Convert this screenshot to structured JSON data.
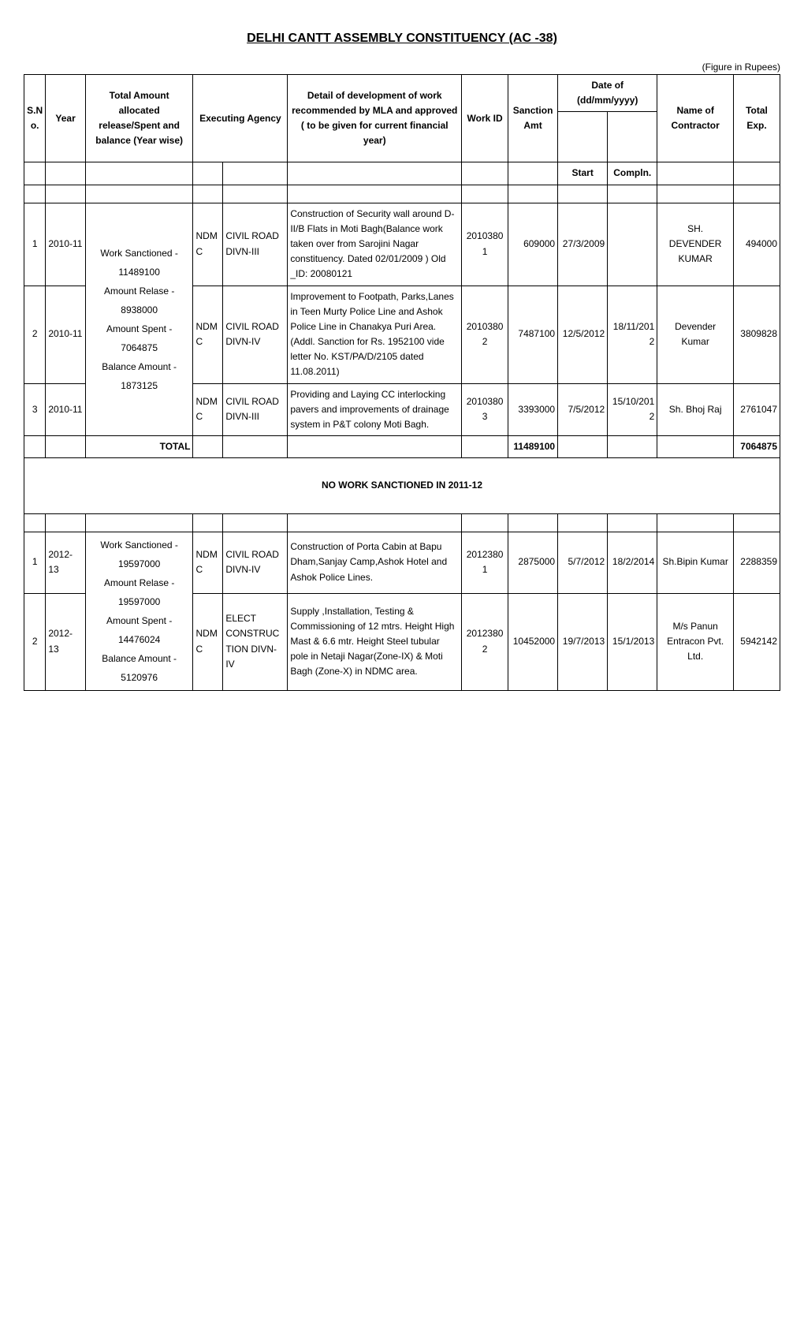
{
  "title": "DELHI CANTT ASSEMBLY CONSTITUENCY (AC -38)",
  "figure_note": "(Figure in Rupees)",
  "headers": {
    "sno": "S.No.",
    "year": "Year",
    "amount": "Total Amount allocated release/Spent and balance (Year wise)",
    "agency": "Executing  Agency",
    "detail": "Detail of development of work recommended by  MLA  and approved ( to be given for current financial year)",
    "workid": "Work ID",
    "sanction": "Sanction Amt",
    "date": "Date of (dd/mm/yyyy)",
    "contractor": "Name of Contractor",
    "total": "Total Exp.",
    "start": "Start",
    "compln": "Compln."
  },
  "section1": {
    "amount_text": "Work Sanctioned - 11489100 Amount Relase - 8938000 Amount Spent - 7064875 Balance Amount - 1873125",
    "amount_part1": "Work Sanctioned - 11489100",
    "amount_part2": "Amount Relase - 8938000",
    "amount_part3": "Amount Spent -",
    "amount_part4": "7064875",
    "amount_part5": "Balance Amount - 1873125",
    "rows": [
      {
        "sno": "1",
        "year": "2010-11",
        "agency1": "NDMC",
        "agency2": "CIVIL ROAD DIVN-III",
        "detail": "Construction of Security wall around D-II/B Flats in Moti Bagh(Balance work taken over from Sarojini Nagar constituency. Dated 02/01/2009 ) Old _ID: 20080121",
        "workid": "20103801",
        "sanction": "609000",
        "start": "27/3/2009",
        "compln": "",
        "contractor": "SH. DEVENDER KUMAR",
        "total": "494000"
      },
      {
        "sno": "2",
        "year": "2010-11",
        "agency1": "NDMC",
        "agency2": "CIVIL ROAD DIVN-IV",
        "detail": "Improvement to Footpath, Parks,Lanes in Teen Murty Police Line and Ashok Police Line in Chanakya Puri Area.(Addl. Sanction for Rs. 1952100 vide letter No. KST/PA/D/2105 dated 11.08.2011)",
        "workid": "20103802",
        "sanction": "7487100",
        "start": "12/5/2012",
        "compln": "18/11/2012",
        "contractor": "Devender Kumar",
        "total": "3809828"
      },
      {
        "sno": "3",
        "year": "2010-11",
        "agency1": "NDMC",
        "agency2": "CIVIL ROAD DIVN-III",
        "detail": "Providing and Laying CC interlocking pavers and improvements of drainage system in P&T colony Moti Bagh.",
        "workid": "20103803",
        "sanction": "3393000",
        "start": "7/5/2012",
        "compln": "15/10/2012",
        "contractor": "Sh. Bhoj Raj",
        "total": "2761047"
      }
    ],
    "total_label": "TOTAL",
    "total_sanction": "11489100",
    "total_exp": "7064875"
  },
  "no_work": "NO WORK SANCTIONED IN  2011-12",
  "section2": {
    "amount_part1": "Work Sanctioned - 19597000",
    "amount_part2": "Amount Relase -",
    "amount_part3": "19597000",
    "amount_part4": "Amount Spent - 14476024",
    "amount_part5": "Balance Amount - 5120976",
    "rows": [
      {
        "sno": "1",
        "year": "2012-13",
        "agency1": "NDMC",
        "agency2": "CIVIL ROAD DIVN-IV",
        "detail": "Construction of Porta Cabin at Bapu Dham,Sanjay Camp,Ashok Hotel and Ashok Police Lines.",
        "workid": "20123801",
        "sanction": "2875000",
        "start": "5/7/2012",
        "compln": "18/2/2014",
        "contractor": "Sh.Bipin Kumar",
        "total": "2288359"
      },
      {
        "sno": "2",
        "year": "2012-13",
        "agency1": "NDMC",
        "agency2": "ELECT CONSTRUCTION DIVN-IV",
        "detail": "Supply ,Installation, Testing & Commissioning of 12 mtrs. Height High Mast & 6.6 mtr. Height Steel tubular pole in Netaji Nagar(Zone-IX) & Moti Bagh (Zone-X) in NDMC area.",
        "workid": "20123802",
        "sanction": "10452000",
        "start": "19/7/2013",
        "compln": "15/1/2013",
        "contractor": "M/s Panun Entracon Pvt. Ltd.",
        "total": "5942142"
      }
    ]
  }
}
